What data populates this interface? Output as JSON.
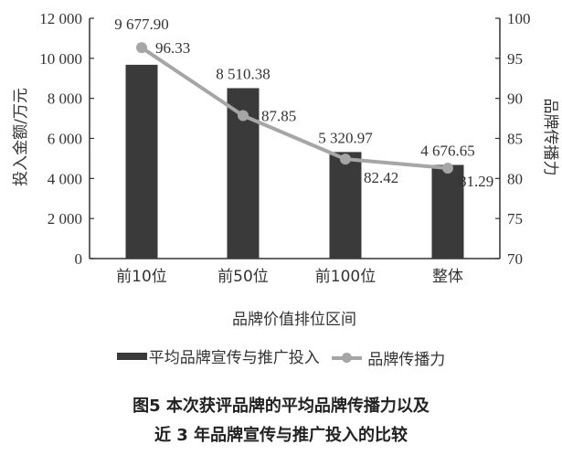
{
  "chart_data": {
    "type": "bar+line",
    "title": "图5 本次获评品牌的平均品牌传播力以及近3年品牌宣传与推广投入的比较",
    "categories": [
      "前10位",
      "前50位",
      "前100位",
      "整体"
    ],
    "series": [
      {
        "name": "平均品牌宣传与推广投入",
        "type": "bar",
        "axis": "left",
        "values": [
          9677.9,
          8510.38,
          5320.97,
          4676.65
        ],
        "labels": [
          "9 677.90",
          "8 510.38",
          "5 320.97",
          "4 676.65"
        ],
        "color": "#3a3a3a"
      },
      {
        "name": "品牌传播力",
        "type": "line",
        "axis": "right",
        "values": [
          96.33,
          87.85,
          82.42,
          81.29
        ],
        "labels": [
          "96.33",
          "87.85",
          "82.42",
          "81.29"
        ],
        "color": "#a6a6a6"
      }
    ],
    "xlabel": "品牌价值排位区间",
    "ylabel": "投入金额/万元",
    "y2label": "品牌传播力",
    "ylim": [
      0,
      12000
    ],
    "y2lim": [
      70,
      100
    ],
    "yticks": [
      "0",
      "2 000",
      "4 000",
      "6 000",
      "8 000",
      "10 000",
      "12 000"
    ],
    "y2ticks": [
      "70",
      "75",
      "80",
      "85",
      "90",
      "95",
      "100"
    ],
    "grid": false,
    "legend_position": "bottom"
  },
  "legend": {
    "bar_label": "平均品牌宣传与推广投入",
    "line_label": "品牌传播力"
  },
  "caption": {
    "line1": "图5  本次获评品牌的平均品牌传播力以及",
    "line2": "近 3 年品牌宣传与推广投入的比较"
  }
}
